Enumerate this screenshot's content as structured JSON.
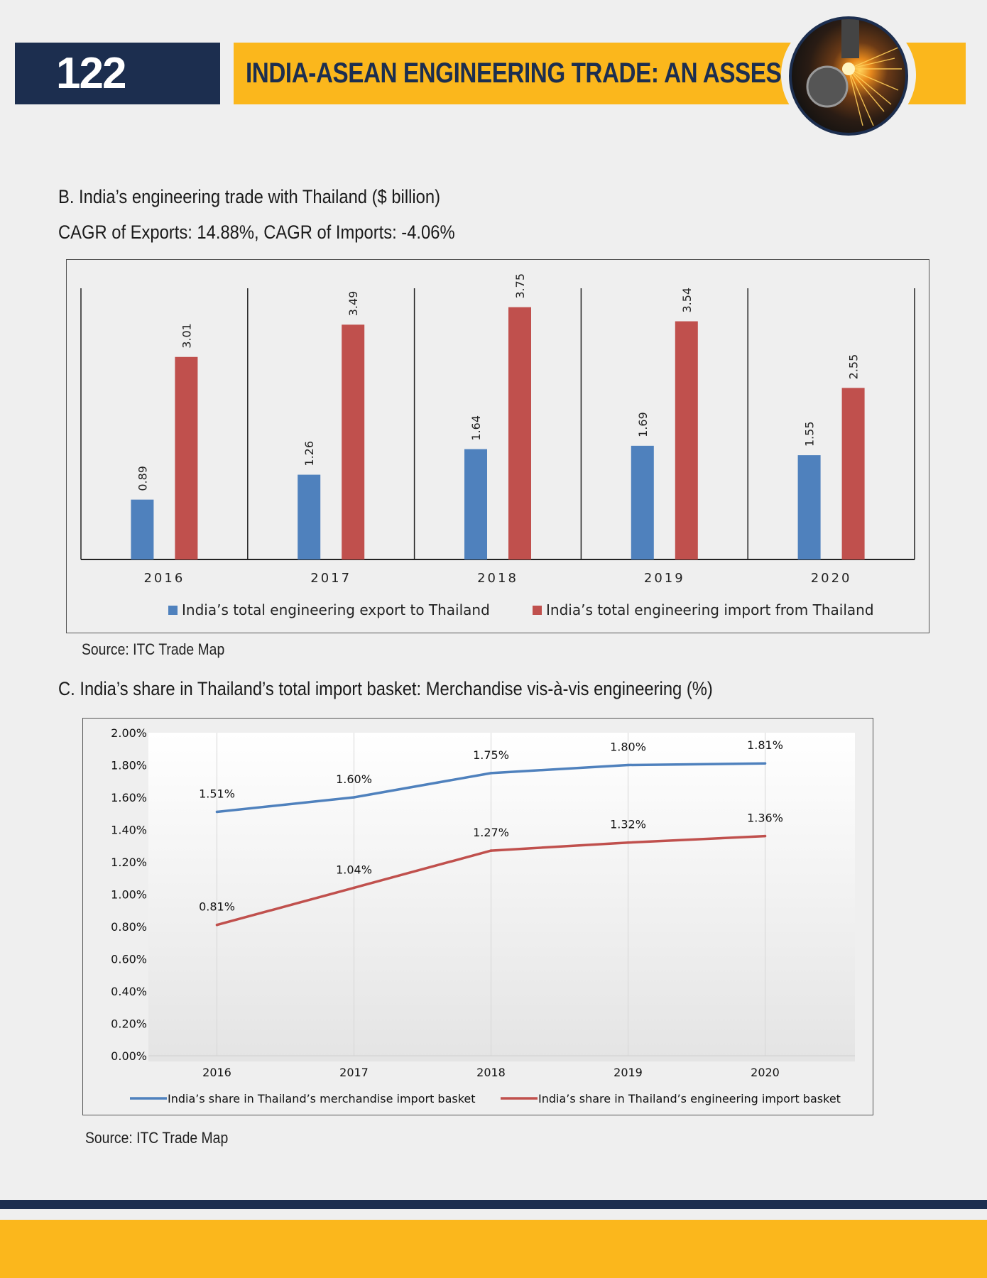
{
  "header": {
    "page_number": "122",
    "title": "INDIA-ASEAN ENGINEERING TRADE: AN ASSESSMENT"
  },
  "section_b": {
    "heading": "B.  India’s engineering trade with Thailand ($ billion)",
    "subheading": "CAGR of Exports: 14.88%, CAGR of Imports: -4.06%",
    "source": "Source: ITC Trade Map"
  },
  "section_c": {
    "heading": "C. India’s share in Thailand’s total import basket: Merchandise vis-à-vis engineering (%)",
    "source": "Source: ITC Trade Map"
  },
  "chart_data": [
    {
      "type": "bar",
      "title": "",
      "categories": [
        "2016",
        "2017",
        "2018",
        "2019",
        "2020"
      ],
      "series": [
        {
          "name": "India’s total engineering export to Thailand",
          "values": [
            0.89,
            1.26,
            1.64,
            1.69,
            1.55
          ],
          "labels": [
            "0.89",
            "1.26",
            "1.64",
            "1.69",
            "1.55"
          ],
          "color": "#4f81bd"
        },
        {
          "name": "India’s total engineering import from Thailand",
          "values": [
            3.01,
            3.49,
            3.75,
            3.54,
            2.55
          ],
          "labels": [
            "3.01",
            "3.49",
            "3.75",
            "3.54",
            "2.55"
          ],
          "color": "#c0504d"
        }
      ],
      "ylim": [
        0,
        4
      ],
      "legend": "bottom",
      "data_labels": "rotated-vertical",
      "grid": false
    },
    {
      "type": "line",
      "title": "",
      "x": [
        "2016",
        "2017",
        "2018",
        "2019",
        "2020"
      ],
      "series": [
        {
          "name": "India’s share in Thailand’s merchandise import basket",
          "values": [
            1.51,
            1.6,
            1.75,
            1.8,
            1.81
          ],
          "labels": [
            "1.51%",
            "1.60%",
            "1.75%",
            "1.80%",
            "1.81%"
          ],
          "color": "#4f81bd"
        },
        {
          "name": "India’s share in Thailand’s engineering import basket",
          "values": [
            0.81,
            1.04,
            1.27,
            1.32,
            1.36
          ],
          "labels": [
            "0.81%",
            "1.04%",
            "1.27%",
            "1.32%",
            "1.36%"
          ],
          "color": "#c0504d"
        }
      ],
      "ylim": [
        0,
        2
      ],
      "yticks": [
        "0.00%",
        "0.20%",
        "0.40%",
        "0.60%",
        "0.80%",
        "1.00%",
        "1.20%",
        "1.40%",
        "1.60%",
        "1.80%",
        "2.00%"
      ],
      "legend": "bottom",
      "grid": "vertical"
    }
  ]
}
